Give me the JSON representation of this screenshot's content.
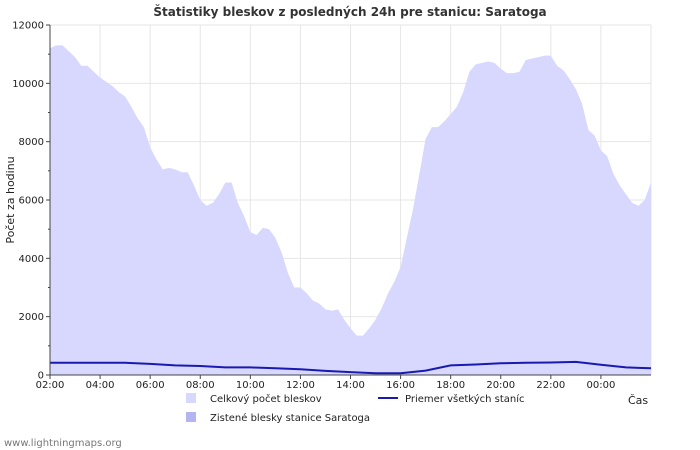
{
  "chart_data": {
    "type": "area",
    "title": "Štatistiky bleskov z posledných 24h pre stanicu: Saratoga",
    "xlabel": "Čas",
    "ylabel": "Počet za hodinu",
    "ylim": [
      0,
      12000
    ],
    "yticks": [
      0,
      2000,
      4000,
      6000,
      8000,
      10000,
      12000
    ],
    "xlim": [
      0,
      24
    ],
    "xticks": [
      {
        "x": 0,
        "label": "02:00"
      },
      {
        "x": 2,
        "label": "04:00"
      },
      {
        "x": 4,
        "label": "06:00"
      },
      {
        "x": 6,
        "label": "08:00"
      },
      {
        "x": 8,
        "label": "10:00"
      },
      {
        "x": 10,
        "label": "12:00"
      },
      {
        "x": 12,
        "label": "14:00"
      },
      {
        "x": 14,
        "label": "16:00"
      },
      {
        "x": 16,
        "label": "18:00"
      },
      {
        "x": 18,
        "label": "20:00"
      },
      {
        "x": 20,
        "label": "22:00"
      },
      {
        "x": 22,
        "label": "00:00"
      }
    ],
    "grid": true,
    "series": [
      {
        "name": "Celkový počet bleskov",
        "style": "area",
        "color": "#d8d8ff",
        "x": [
          0,
          0.25,
          0.5,
          0.75,
          1.0,
          1.25,
          1.5,
          1.75,
          2.0,
          2.25,
          2.5,
          2.75,
          3.0,
          3.25,
          3.5,
          3.75,
          4.0,
          4.25,
          4.5,
          4.75,
          5.0,
          5.25,
          5.5,
          5.75,
          6.0,
          6.25,
          6.5,
          6.75,
          7.0,
          7.25,
          7.5,
          7.75,
          8.0,
          8.25,
          8.5,
          8.75,
          9.0,
          9.25,
          9.5,
          9.75,
          10.0,
          10.25,
          10.5,
          10.75,
          11.0,
          11.25,
          11.5,
          11.75,
          12.0,
          12.25,
          12.5,
          12.75,
          13.0,
          13.25,
          13.5,
          13.75,
          14.0,
          14.25,
          14.5,
          14.75,
          15.0,
          15.25,
          15.5,
          15.75,
          16.0,
          16.25,
          16.5,
          16.75,
          17.0,
          17.25,
          17.5,
          17.75,
          18.0,
          18.25,
          18.5,
          18.75,
          19.0,
          19.25,
          19.5,
          19.75,
          20.0,
          20.25,
          20.5,
          20.75,
          21.0,
          21.25,
          21.5,
          21.75,
          22.0,
          22.25,
          22.5,
          22.75,
          23.0,
          23.25,
          23.5,
          23.75,
          24.0
        ],
        "values": [
          11200,
          11300,
          11300,
          11100,
          10900,
          10600,
          10600,
          10400,
          10200,
          10050,
          9900,
          9700,
          9550,
          9200,
          8800,
          8500,
          7800,
          7400,
          7050,
          7100,
          7050,
          6950,
          6950,
          6500,
          6000,
          5800,
          5900,
          6200,
          6600,
          6600,
          5900,
          5450,
          4900,
          4800,
          5050,
          5000,
          4700,
          4200,
          3500,
          3000,
          3000,
          2800,
          2550,
          2450,
          2250,
          2200,
          2250,
          1900,
          1600,
          1350,
          1350,
          1600,
          1900,
          2300,
          2800,
          3200,
          3700,
          4700,
          5700,
          6900,
          8100,
          8500,
          8500,
          8700,
          8950,
          9200,
          9700,
          10400,
          10650,
          10700,
          10750,
          10700,
          10500,
          10350,
          10350,
          10400,
          10800,
          10850,
          10900,
          10950,
          10950,
          10600,
          10450,
          10150,
          9800,
          9300,
          8400,
          8200,
          7700,
          7500,
          6900,
          6500,
          6200,
          5900,
          5800,
          6000,
          6600
        ]
      },
      {
        "name": "Zistené blesky stanice Saratoga",
        "style": "area",
        "color": "#b4b4f0",
        "values_note": "not visible in plot area"
      },
      {
        "name": "Priemer všetkých staníc",
        "style": "line",
        "color": "#1a1ab0",
        "x": [
          0,
          1,
          2,
          3,
          4,
          5,
          6,
          7,
          8,
          9,
          10,
          11,
          12,
          13,
          14,
          15,
          16,
          17,
          18,
          19,
          20,
          21,
          22,
          23,
          24
        ],
        "values": [
          420,
          420,
          420,
          420,
          380,
          330,
          310,
          260,
          260,
          230,
          200,
          140,
          100,
          60,
          60,
          150,
          330,
          360,
          400,
          420,
          430,
          450,
          350,
          260,
          230
        ]
      }
    ],
    "legend": [
      {
        "label": "Celkový počet bleskov",
        "kind": "box",
        "color": "#d8d8ff"
      },
      {
        "label": "Priemer všetkých staníc",
        "kind": "line",
        "color": "#1a1ab0"
      },
      {
        "label": "Zistené blesky stanice Saratoga",
        "kind": "box",
        "color": "#b4b4f0"
      }
    ],
    "legend_position": "bottom"
  },
  "footer": {
    "text": "www.lightningmaps.org"
  }
}
